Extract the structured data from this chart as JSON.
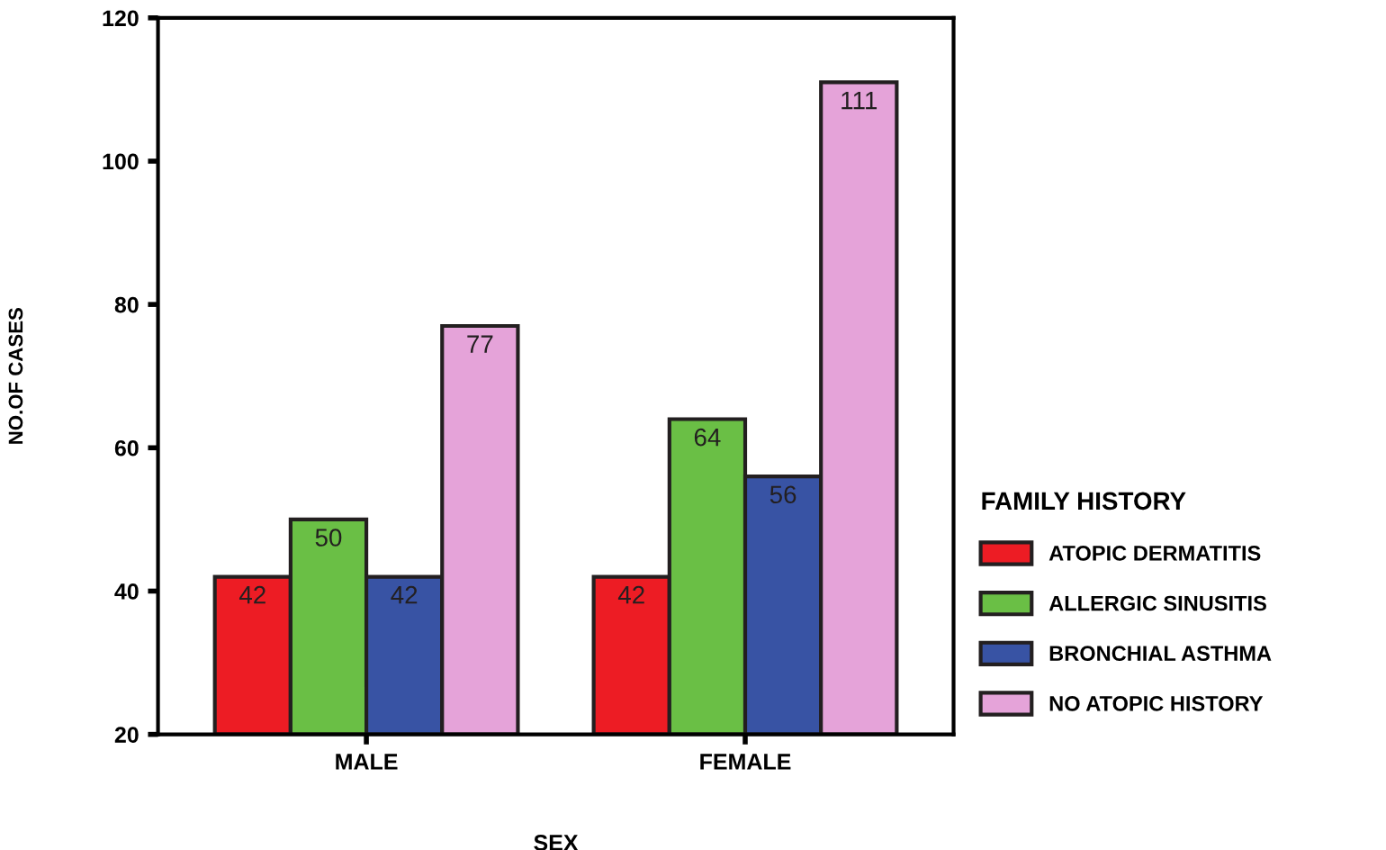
{
  "chart_data": {
    "type": "bar",
    "xlabel": "SEX",
    "ylabel": "NO.OF CASES",
    "legend_title": "FAMILY HISTORY",
    "categories": [
      "MALE",
      "FEMALE"
    ],
    "series": [
      {
        "name": "ATOPIC DERMATITIS",
        "color": "#ed1c24",
        "values": [
          42,
          42
        ]
      },
      {
        "name": "ALLERGIC SINUSITIS",
        "color": "#6abf45",
        "values": [
          50,
          64
        ]
      },
      {
        "name": "BRONCHIAL ASTHMA",
        "color": "#3853a4",
        "values": [
          42,
          56
        ]
      },
      {
        "name": "NO ATOPIC HISTORY",
        "color": "#e5a3d9",
        "values": [
          77,
          111
        ]
      }
    ],
    "ylim": [
      20,
      120
    ],
    "yticks": [
      20,
      40,
      60,
      80,
      100,
      120
    ],
    "data_labels": true,
    "grid": false,
    "legend": "right"
  }
}
